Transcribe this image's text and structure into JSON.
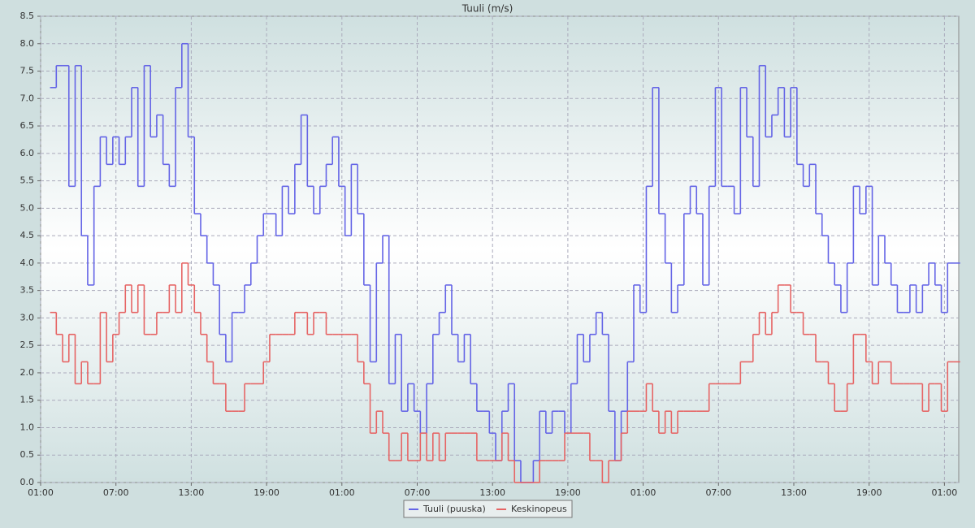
{
  "chart_data": {
    "type": "step-line",
    "title": "Tuuli (m/s)",
    "x": [
      0.75,
      1.25,
      1.75,
      2.25,
      2.75,
      3.25,
      3.75,
      4.25,
      4.75,
      5.25,
      5.75,
      6.25,
      6.75,
      7.25,
      7.75,
      8.25,
      8.75,
      9.25,
      9.75,
      10.25,
      10.75,
      11.25,
      11.75,
      12.25,
      12.75,
      13.25,
      13.75,
      14.25,
      14.75,
      15.25,
      15.75,
      16.25,
      16.75,
      17.25,
      17.75,
      18.25,
      18.75,
      19.25,
      19.75,
      20.25,
      20.75,
      21.25,
      21.75,
      22.25,
      22.75,
      23.25,
      23.75,
      24.25,
      24.75,
      25.25,
      25.75,
      26.25,
      26.75,
      27.25,
      27.75,
      28.25,
      28.75,
      29.25,
      29.75,
      30.25,
      30.75,
      31.25,
      31.75,
      32.25,
      32.75,
      33.25,
      33.75,
      34.25,
      34.75,
      35.25,
      35.75,
      36.25,
      36.75,
      37.25,
      37.75,
      38.25,
      38.75,
      39.25,
      39.75,
      40.25,
      40.75,
      41.25,
      41.75,
      42.25,
      42.75,
      43.25,
      43.75,
      44.25,
      44.75,
      45.25,
      45.75,
      46.25,
      46.75,
      47.25,
      47.75,
      48.25,
      48.75,
      49.25,
      49.75,
      50.25,
      50.75,
      51.25,
      51.75,
      52.25,
      52.75,
      53.25,
      53.75,
      54.25,
      54.75,
      55.25,
      55.75,
      56.25,
      56.75,
      57.25,
      57.75,
      58.25,
      58.75,
      59.25,
      59.75,
      60.25,
      60.75,
      61.25,
      61.75,
      62.25,
      62.75,
      63.25,
      63.75,
      64.25,
      64.75,
      65.25,
      65.75,
      66.25,
      66.75,
      67.25,
      67.75,
      68.25,
      68.75,
      69.25,
      69.75,
      70.25,
      70.75,
      71.25,
      71.75,
      72.25,
      72.75
    ],
    "series": [
      {
        "name": "Tuuli (puuska)",
        "color": "#6464e6",
        "values": [
          7.2,
          7.6,
          7.6,
          5.4,
          7.6,
          4.5,
          3.6,
          5.4,
          6.3,
          5.8,
          6.3,
          5.8,
          6.3,
          7.2,
          5.4,
          7.6,
          6.3,
          6.7,
          5.8,
          5.4,
          7.2,
          8.0,
          6.3,
          4.9,
          4.5,
          4.0,
          3.6,
          2.7,
          2.2,
          3.1,
          3.1,
          3.6,
          4.0,
          4.5,
          4.9,
          4.9,
          4.5,
          5.4,
          4.9,
          5.8,
          6.7,
          5.4,
          4.9,
          5.4,
          5.8,
          6.3,
          5.4,
          4.5,
          5.8,
          4.9,
          3.6,
          2.2,
          4.0,
          4.5,
          1.8,
          2.7,
          1.3,
          1.8,
          1.3,
          0.9,
          1.8,
          2.7,
          3.1,
          3.6,
          2.7,
          2.2,
          2.7,
          1.8,
          1.3,
          1.3,
          0.9,
          0.4,
          1.3,
          1.8,
          0.4,
          0.0,
          0.0,
          0.4,
          1.3,
          0.9,
          1.3,
          1.3,
          0.9,
          1.8,
          2.7,
          2.2,
          2.7,
          3.1,
          2.7,
          1.3,
          0.4,
          1.3,
          2.2,
          3.6,
          3.1,
          5.4,
          7.2,
          4.9,
          4.0,
          3.1,
          3.6,
          4.9,
          5.4,
          4.9,
          3.6,
          5.4,
          7.2,
          5.4,
          5.4,
          4.9,
          7.2,
          6.3,
          5.4,
          7.6,
          6.3,
          6.7,
          7.2,
          6.3,
          7.2,
          5.8,
          5.4,
          5.8,
          4.9,
          4.5,
          4.0,
          3.6,
          3.1,
          4.0,
          5.4,
          4.9,
          5.4,
          3.6,
          4.5,
          4.0,
          3.6,
          3.1,
          3.1,
          3.6,
          3.1,
          3.6,
          4.0,
          3.6,
          3.1,
          4.0,
          4.0
        ]
      },
      {
        "name": "Keskinopeus",
        "color": "#e66464",
        "values": [
          3.1,
          2.7,
          2.2,
          2.7,
          1.8,
          2.2,
          1.8,
          1.8,
          3.1,
          2.2,
          2.7,
          3.1,
          3.6,
          3.1,
          3.6,
          2.7,
          2.7,
          3.1,
          3.1,
          3.6,
          3.1,
          4.0,
          3.6,
          3.1,
          2.7,
          2.2,
          1.8,
          1.8,
          1.3,
          1.3,
          1.3,
          1.8,
          1.8,
          1.8,
          2.2,
          2.7,
          2.7,
          2.7,
          2.7,
          3.1,
          3.1,
          2.7,
          3.1,
          3.1,
          2.7,
          2.7,
          2.7,
          2.7,
          2.7,
          2.2,
          1.8,
          0.9,
          1.3,
          0.9,
          0.4,
          0.4,
          0.9,
          0.4,
          0.4,
          0.9,
          0.4,
          0.9,
          0.4,
          0.9,
          0.9,
          0.9,
          0.9,
          0.9,
          0.4,
          0.4,
          0.4,
          0.4,
          0.9,
          0.4,
          0.0,
          0.0,
          0.0,
          0.0,
          0.4,
          0.4,
          0.4,
          0.4,
          0.9,
          0.9,
          0.9,
          0.9,
          0.4,
          0.4,
          0.0,
          0.4,
          0.4,
          0.9,
          1.3,
          1.3,
          1.3,
          1.8,
          1.3,
          0.9,
          1.3,
          0.9,
          1.3,
          1.3,
          1.3,
          1.3,
          1.3,
          1.8,
          1.8,
          1.8,
          1.8,
          1.8,
          2.2,
          2.2,
          2.7,
          3.1,
          2.7,
          3.1,
          3.6,
          3.6,
          3.1,
          3.1,
          2.7,
          2.7,
          2.2,
          2.2,
          1.8,
          1.3,
          1.3,
          1.8,
          2.7,
          2.7,
          2.2,
          1.8,
          2.2,
          2.2,
          1.8,
          1.8,
          1.8,
          1.8,
          1.8,
          1.3,
          1.8,
          1.8,
          1.3,
          2.2,
          2.2
        ]
      }
    ],
    "xlim": [
      0,
      73.14
    ],
    "xticks": [
      {
        "value": 0,
        "label": "01:00"
      },
      {
        "value": 6,
        "label": "07:00"
      },
      {
        "value": 12,
        "label": "13:00"
      },
      {
        "value": 18,
        "label": "19:00"
      },
      {
        "value": 24,
        "label": "01:00"
      },
      {
        "value": 30,
        "label": "07:00"
      },
      {
        "value": 36,
        "label": "13:00"
      },
      {
        "value": 42,
        "label": "19:00"
      },
      {
        "value": 48,
        "label": "01:00"
      },
      {
        "value": 54,
        "label": "07:00"
      },
      {
        "value": 60,
        "label": "13:00"
      },
      {
        "value": 66,
        "label": "19:00"
      },
      {
        "value": 72,
        "label": "01:00"
      }
    ],
    "ylim": [
      0,
      8.5
    ],
    "yticks": [
      {
        "value": 0,
        "label": "0.0"
      },
      0.5,
      {
        "value": 1,
        "label": "1.0"
      },
      1.5,
      {
        "value": 2,
        "label": "2.0"
      },
      2.5,
      {
        "value": 3,
        "label": "3.0"
      },
      3.5,
      {
        "value": 4,
        "label": "4.0"
      },
      4.5,
      {
        "value": 5,
        "label": "5.0"
      },
      5.5,
      {
        "value": 6,
        "label": "6.0"
      },
      6.5,
      {
        "value": 7,
        "label": "7.0"
      },
      7.5,
      {
        "value": 8,
        "label": "8.0"
      },
      8.5
    ],
    "grid": true
  }
}
